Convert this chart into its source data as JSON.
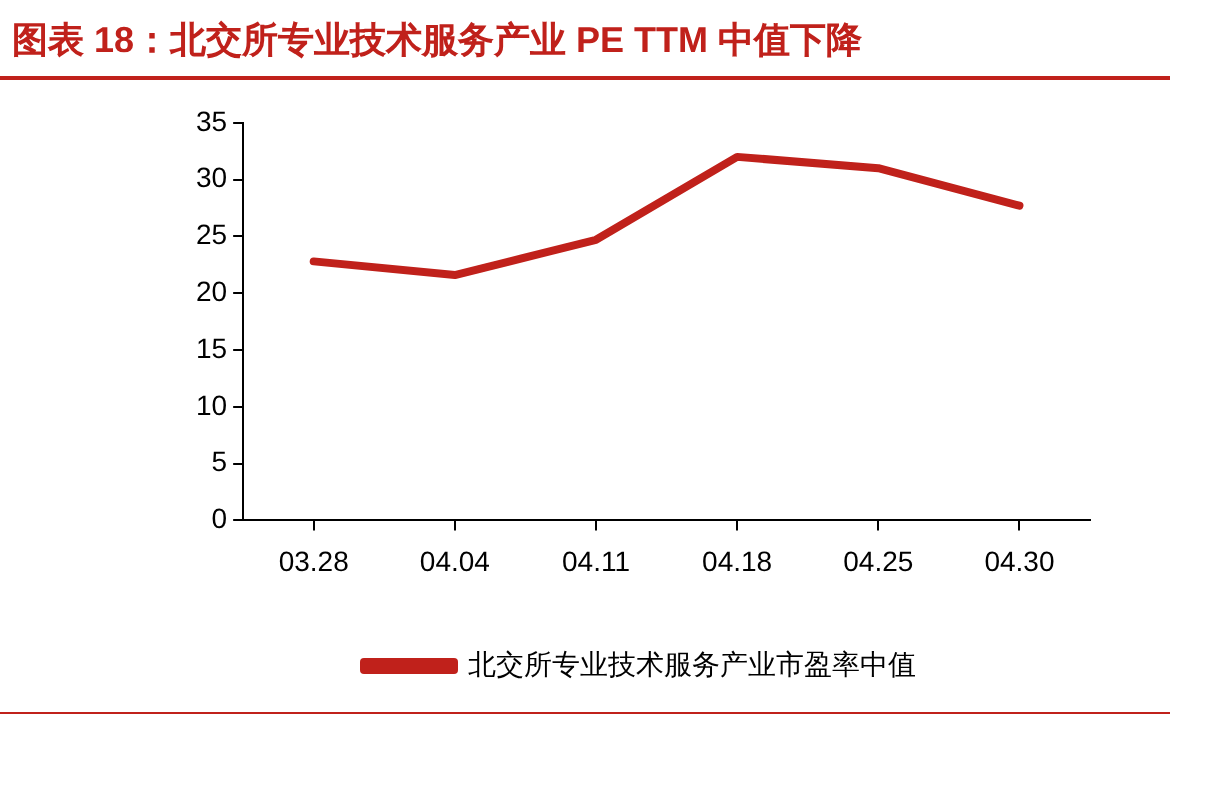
{
  "chart_data": {
    "type": "line",
    "title": "图表 18：北交所专业技术服务产业 PE TTM 中值下降",
    "categories": [
      "03.28",
      "04.04",
      "04.11",
      "04.18",
      "04.25",
      "04.30"
    ],
    "series": [
      {
        "name": "北交所专业技术服务产业市盈率中值",
        "color": "#c0211b",
        "values": [
          22.8,
          21.6,
          24.7,
          32.0,
          31.0,
          27.7
        ]
      }
    ],
    "ylim": [
      0,
      35
    ],
    "yticks": [
      0,
      5,
      10,
      15,
      20,
      25,
      30,
      35
    ],
    "grid": false,
    "legend": "bottom",
    "marker": "none",
    "line_style": "solid"
  }
}
